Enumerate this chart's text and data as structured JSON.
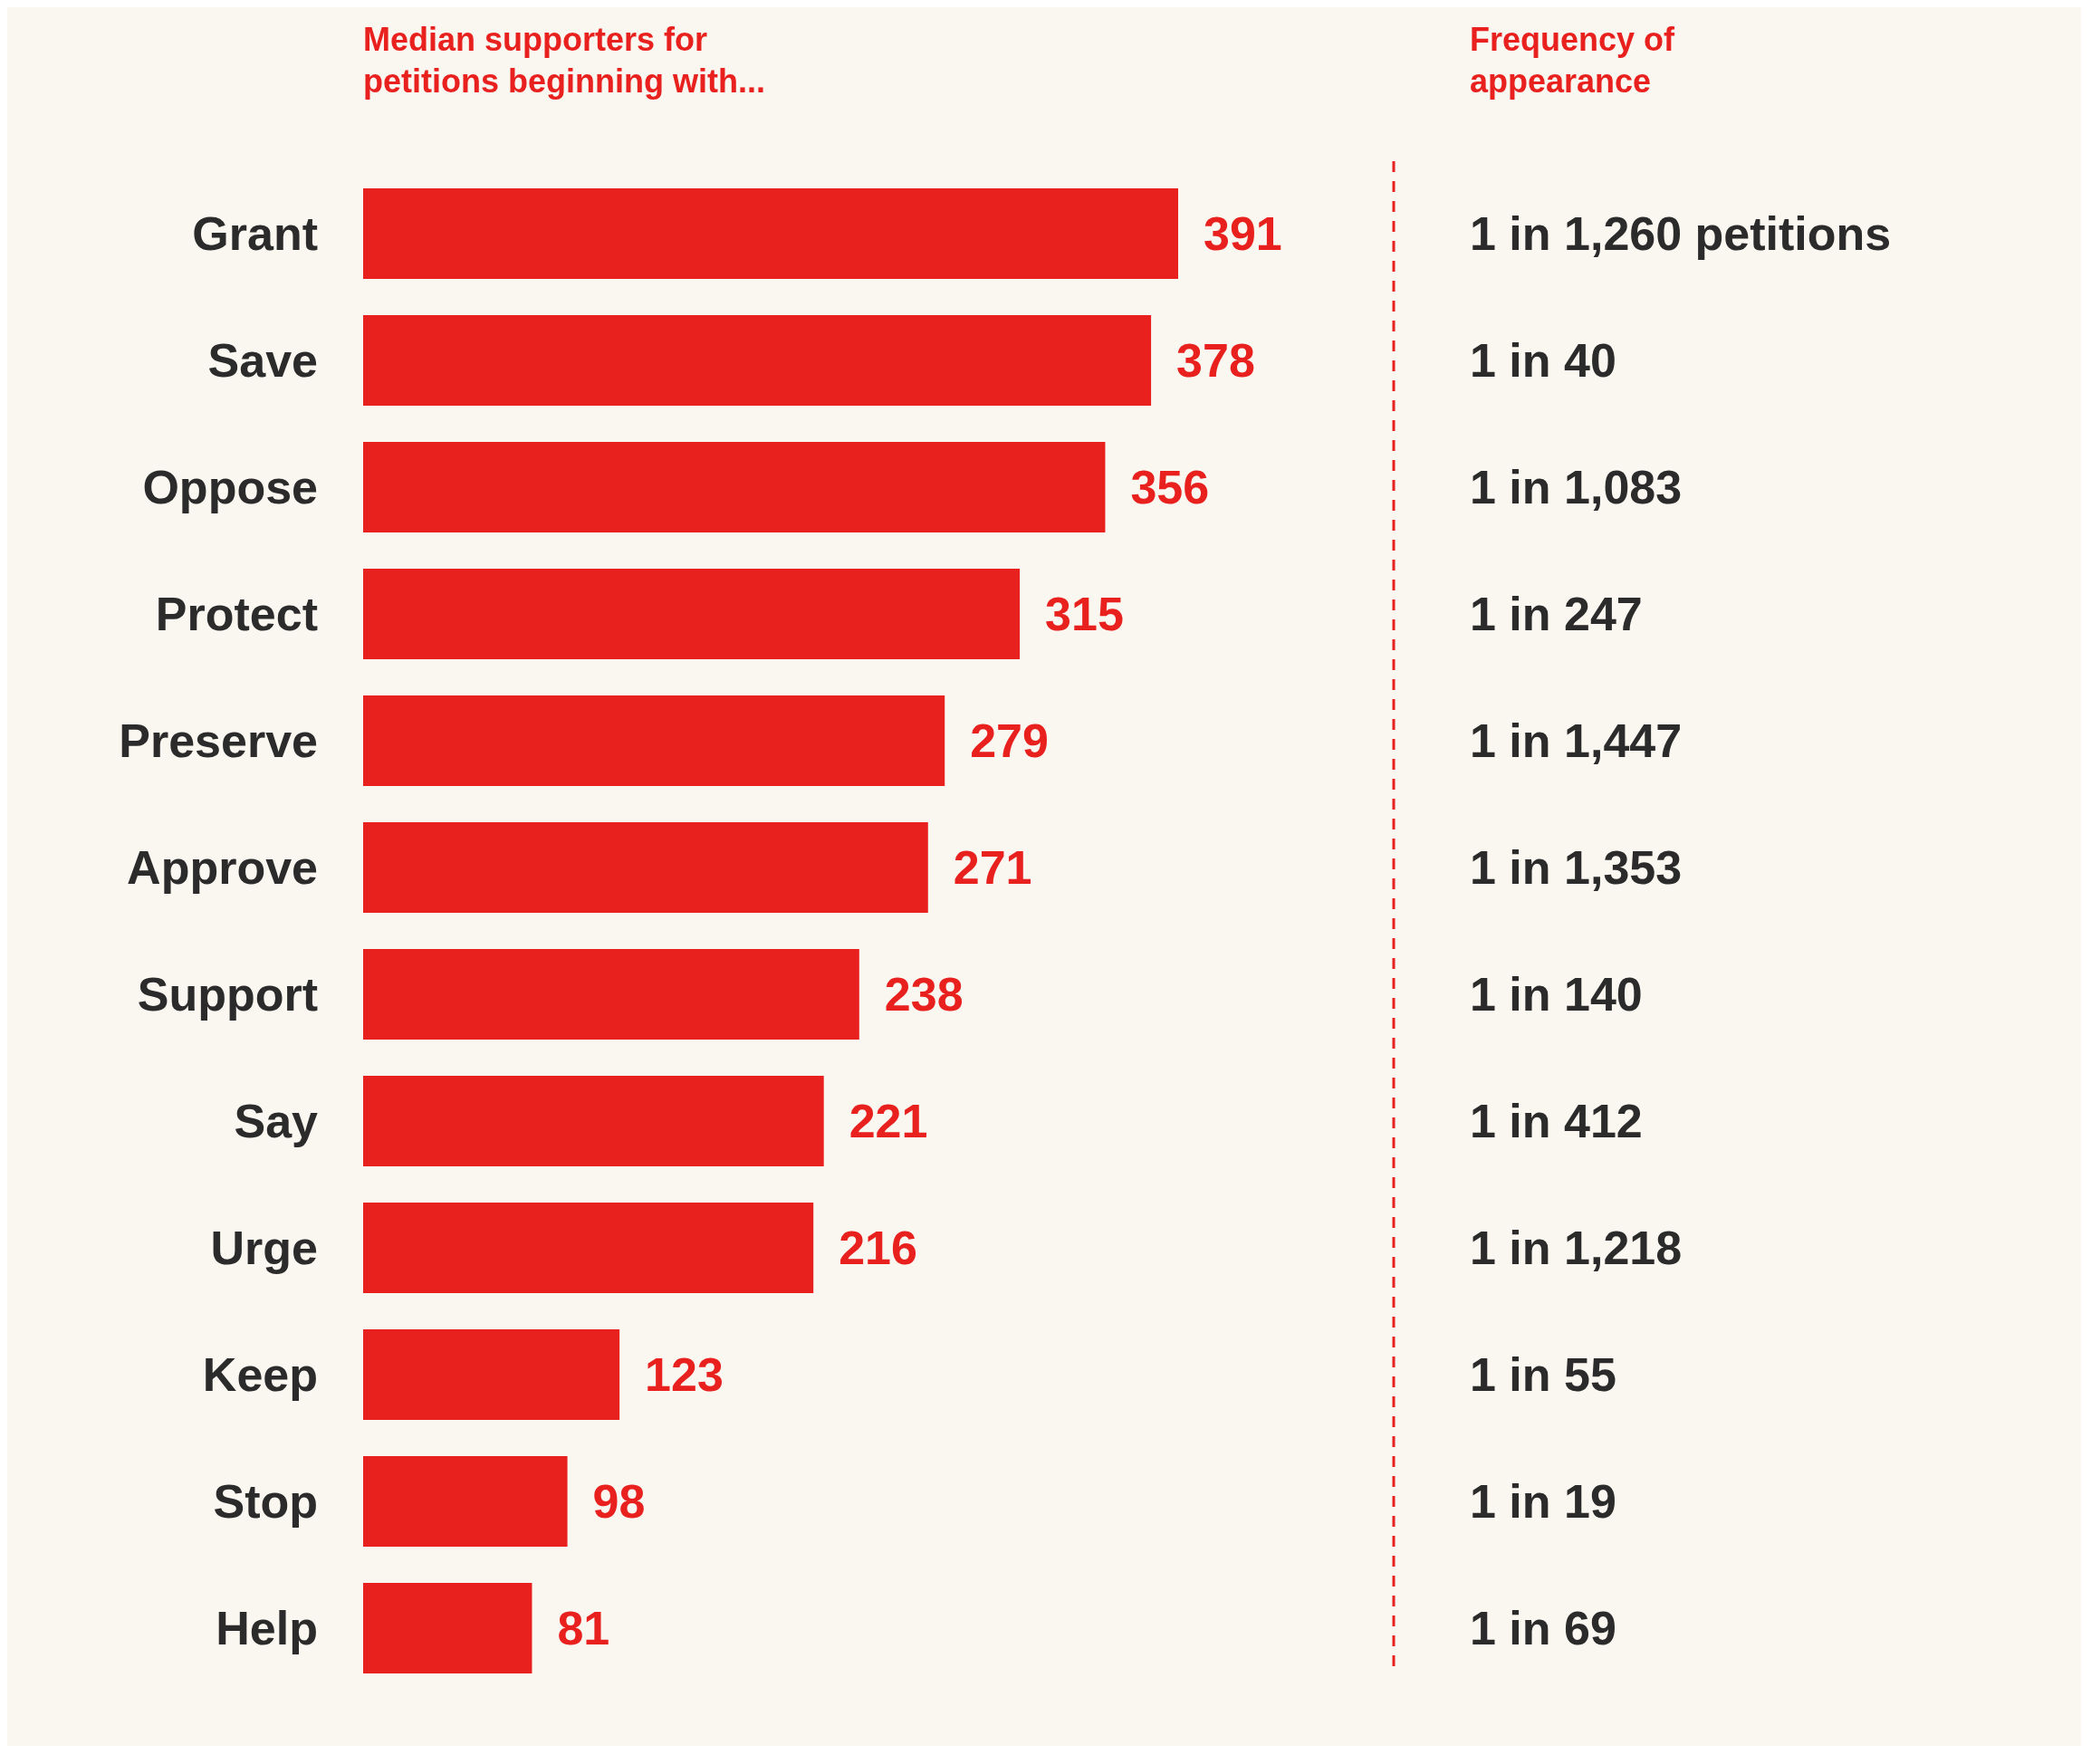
{
  "chart_data": [
    {
      "type": "bar",
      "orientation": "horizontal",
      "title": "Median supporters for petitions beginning with...",
      "categories": [
        "Grant",
        "Save",
        "Oppose",
        "Protect",
        "Preserve",
        "Approve",
        "Support",
        "Say",
        "Urge",
        "Keep",
        "Stop",
        "Help"
      ],
      "values": [
        391,
        378,
        356,
        315,
        279,
        271,
        238,
        221,
        216,
        123,
        98,
        81
      ],
      "color": "#e8211f",
      "data_labels": true
    },
    {
      "type": "other",
      "title": "Frequency of appearance",
      "annotations": [
        "1 in 1,260 petitions",
        "1 in 40",
        "1 in 1,083",
        "1 in 247",
        "1 in 1,447",
        "1 in 1,353",
        "1 in 140",
        "1 in 412",
        "1 in 1,218",
        "1 in 55",
        "1 in 19",
        "1 in 69"
      ]
    }
  ]
}
